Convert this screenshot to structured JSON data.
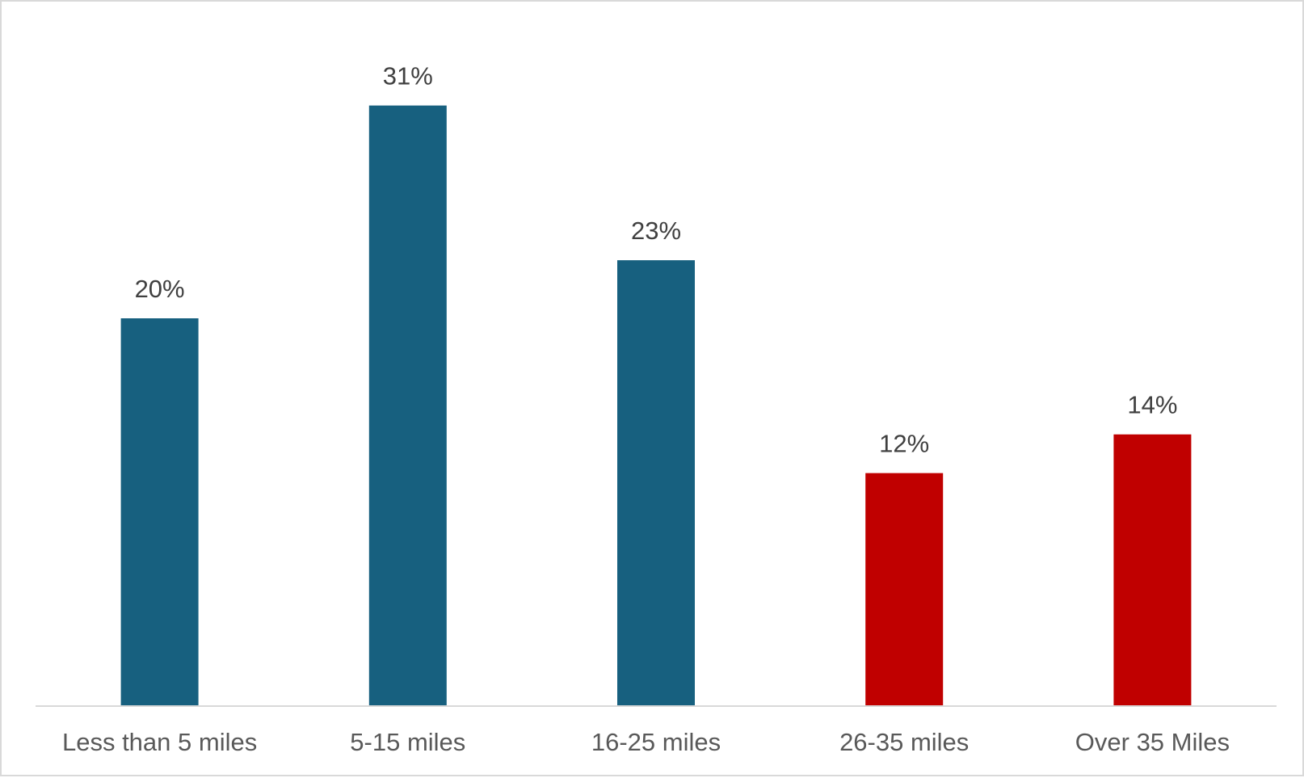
{
  "chart_data": {
    "type": "bar",
    "categories": [
      "Less than 5 miles",
      "5-15 miles",
      "16-25 miles",
      "26-35 miles",
      "Over 35 Miles"
    ],
    "values": [
      20,
      31,
      23,
      12,
      14
    ],
    "value_labels": [
      "20%",
      "31%",
      "23%",
      "12%",
      "14%"
    ],
    "bar_colors": [
      "#17607f",
      "#17607f",
      "#17607f",
      "#c00000",
      "#c00000"
    ],
    "title": "",
    "xlabel": "",
    "ylabel": "",
    "ylim": [
      0,
      32
    ],
    "grid": false,
    "legend": "none",
    "y_axis_visible": false
  },
  "colors": {
    "blue": "#17607f",
    "red": "#c00000",
    "axis": "#d9d9d9",
    "label_text": "#404040",
    "category_text": "#595959"
  }
}
